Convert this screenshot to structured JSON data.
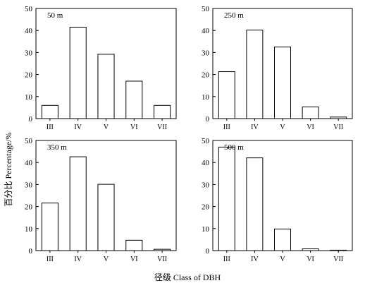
{
  "figure": {
    "y_axis_title": "百分比 Percentage/%",
    "x_axis_title": "径级 Class of DBH"
  },
  "chart_data": [
    {
      "type": "bar",
      "label": "50 m",
      "categories": [
        "III",
        "IV",
        "V",
        "VI",
        "VII"
      ],
      "values": [
        6,
        41.5,
        29.2,
        17,
        6
      ],
      "ylim": [
        0,
        50
      ],
      "yticks": [
        0,
        10,
        20,
        30,
        40,
        50
      ],
      "grid": false
    },
    {
      "type": "bar",
      "label": "250 m",
      "categories": [
        "III",
        "IV",
        "V",
        "VI",
        "VII"
      ],
      "values": [
        21.3,
        40.2,
        32.5,
        5.3,
        0.7
      ],
      "ylim": [
        0,
        50
      ],
      "yticks": [
        0,
        10,
        20,
        30,
        40,
        50
      ],
      "grid": false
    },
    {
      "type": "bar",
      "label": "350 m",
      "categories": [
        "III",
        "IV",
        "V",
        "VI",
        "VII"
      ],
      "values": [
        21.6,
        42.6,
        30.1,
        4.7,
        0.6
      ],
      "ylim": [
        0,
        50
      ],
      "yticks": [
        0,
        10,
        20,
        30,
        40,
        50
      ],
      "grid": false
    },
    {
      "type": "bar",
      "label": "500 m",
      "categories": [
        "III",
        "IV",
        "V",
        "VI",
        "VII"
      ],
      "values": [
        47,
        42.1,
        9.8,
        0.8,
        0.2
      ],
      "ylim": [
        0,
        50
      ],
      "yticks": [
        0,
        10,
        20,
        30,
        40,
        50
      ],
      "grid": false
    }
  ]
}
